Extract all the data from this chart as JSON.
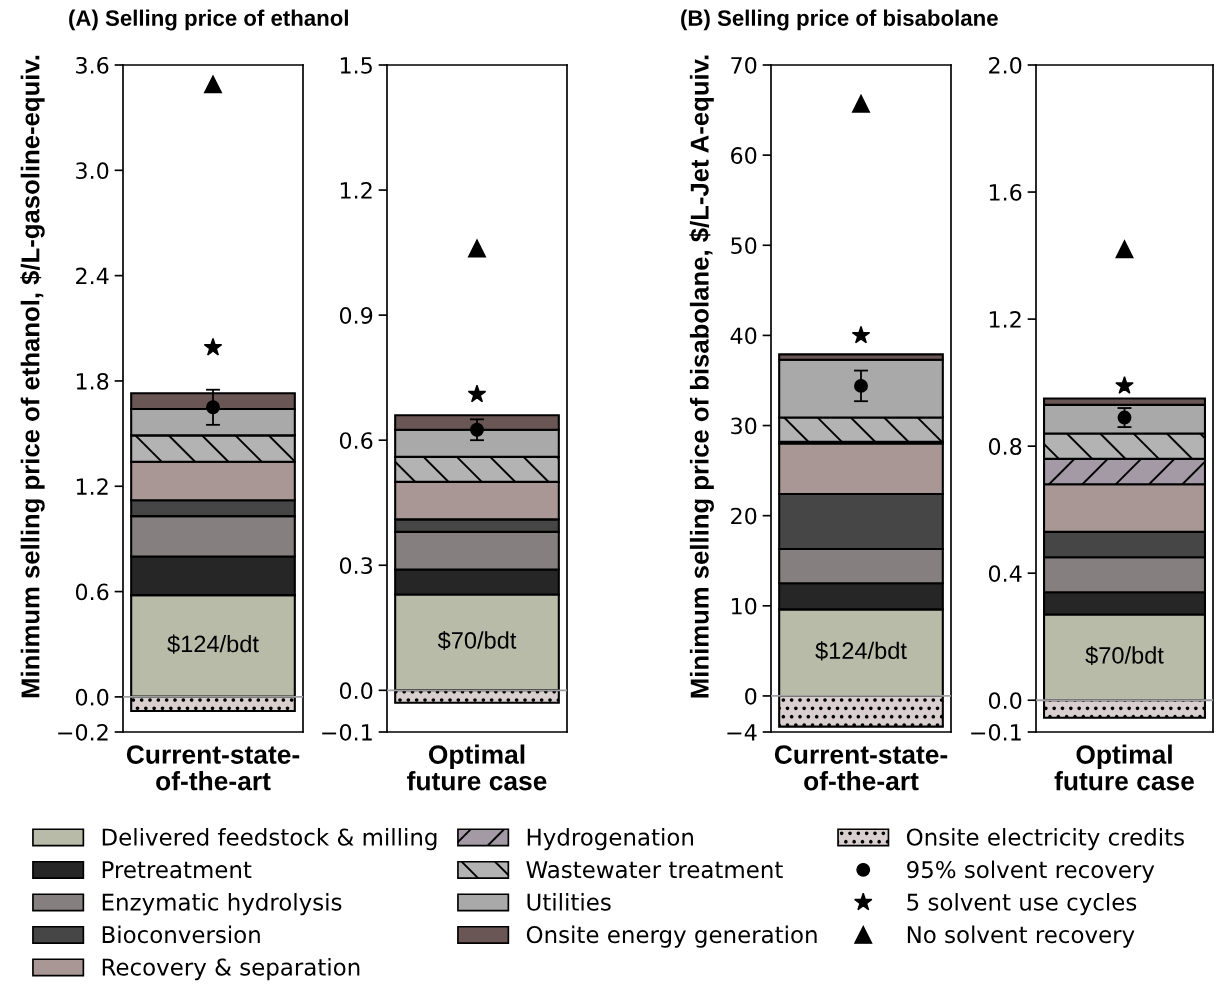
{
  "chart_data": [
    {
      "type": "bar",
      "stacked": true,
      "title": "(A) Selling price of ethanol",
      "ylabel": "Minimum selling price of ethanol, $/L-gasoline-equiv.",
      "legend": "bottom",
      "categories": [
        "Current-state-\nof-the-art"
      ],
      "ylim": [
        -0.2,
        3.6
      ],
      "yticks": [
        {
          "value": -0.2,
          "label": "−0.2"
        },
        {
          "value": 0,
          "label": "0.0"
        },
        0.6,
        1.2,
        1.8,
        2.4,
        {
          "value": 3,
          "label": "3.0"
        },
        3.6
      ],
      "ref_lines": [
        {
          "axis": "y",
          "value": 0,
          "color": "#a0a0a0"
        }
      ],
      "annotations": [
        "$124/bdt"
      ],
      "series": [
        {
          "name": "Delivered feedstock & milling",
          "color": "#b7bba7",
          "values": [
            0.58
          ]
        },
        {
          "name": "Pretreatment",
          "color": "#262626",
          "values": [
            0.22
          ]
        },
        {
          "name": "Enzymatic hydrolysis",
          "color": "#857f7f",
          "values": [
            0.23
          ]
        },
        {
          "name": "Bioconversion",
          "color": "#464646",
          "values": [
            0.09
          ]
        },
        {
          "name": "Recovery & separation",
          "color": "#a99796",
          "values": [
            0.22
          ]
        },
        {
          "name": "Hydrogenation",
          "color": "#a39aa6",
          "values": [
            null
          ]
        },
        {
          "name": "Wastewater treatment",
          "color": "#b3b3b3",
          "values": [
            0.15
          ]
        },
        {
          "name": "Utilities",
          "color": "#a9a9a9",
          "values": [
            0.15
          ]
        },
        {
          "name": "Onsite energy generation",
          "color": "#6b5656",
          "values": [
            0.09
          ]
        },
        {
          "name": "Onsite electricity credits",
          "color": "#d9cfcf",
          "values": [
            -0.08
          ]
        },
        {
          "name": "95% solvent recovery",
          "type": "scatter",
          "marker": "circle",
          "color": "#000000",
          "x": [
            "Current-state-\nof-the-art"
          ],
          "values": [
            1.65
          ],
          "errors": [
            0.1
          ]
        },
        {
          "name": "5 solvent use cycles",
          "type": "scatter",
          "marker": "star",
          "color": "#000000",
          "x": [
            "Current-state-\nof-the-art"
          ],
          "values": [
            1.99
          ]
        },
        {
          "name": "No solvent recovery",
          "type": "scatter",
          "marker": "triangle",
          "color": "#000000",
          "x": [
            "Current-state-\nof-the-art"
          ],
          "values": [
            3.49
          ]
        }
      ]
    },
    {
      "type": "bar",
      "stacked": true,
      "categories": [
        "Optimal\nfuture case"
      ],
      "ylim": [
        -0.1,
        1.5
      ],
      "yticks": [
        {
          "value": -0.1,
          "label": "−0.1"
        },
        {
          "value": 0,
          "label": "0.0"
        },
        0.3,
        0.6,
        0.9,
        1.2,
        1.5
      ],
      "ref_lines": [
        {
          "axis": "y",
          "value": 0,
          "color": "#a0a0a0"
        }
      ],
      "annotations": [
        "$70/bdt"
      ],
      "series": [
        {
          "color": "#b7bba7",
          "values": [
            0.23
          ]
        },
        {
          "color": "#262626",
          "values": [
            0.06
          ]
        },
        {
          "color": "#857f7f",
          "values": [
            0.09
          ]
        },
        {
          "color": "#464646",
          "values": [
            0.03
          ]
        },
        {
          "color": "#a99796",
          "values": [
            0.09
          ]
        },
        {
          "color": "#a39aa6",
          "values": [
            null
          ]
        },
        {
          "color": "#b3b3b3",
          "values": [
            0.06
          ]
        },
        {
          "color": "#a9a9a9",
          "values": [
            0.065
          ]
        },
        {
          "color": "#6b5656",
          "values": [
            0.035
          ]
        },
        {
          "color": "#d9cfcf",
          "values": [
            -0.03
          ]
        },
        {
          "type": "scatter",
          "marker": "circle",
          "color": "#000000",
          "x": [
            "Optimal\nfuture case"
          ],
          "values": [
            0.625
          ],
          "errors": [
            0.025
          ]
        },
        {
          "type": "scatter",
          "marker": "star",
          "color": "#000000",
          "x": [
            "Optimal\nfuture case"
          ],
          "values": [
            0.71
          ]
        },
        {
          "type": "scatter",
          "marker": "triangle",
          "color": "#000000",
          "x": [
            "Optimal\nfuture case"
          ],
          "values": [
            1.06
          ]
        }
      ]
    },
    {
      "type": "bar",
      "stacked": true,
      "title": "(B) Selling price of bisabolane",
      "ylabel": "Minimum selling price of bisabolane, $/L-Jet A-equiv.",
      "categories": [
        "Current-state-\nof-the-art"
      ],
      "ylim": [
        -4,
        70
      ],
      "yticks": [
        {
          "value": -4,
          "label": "−4"
        },
        0,
        10,
        20,
        30,
        40,
        50,
        60,
        70
      ],
      "ref_lines": [
        {
          "axis": "y",
          "value": 0,
          "color": "#a0a0a0"
        }
      ],
      "annotations": [
        "$124/bdt"
      ],
      "series": [
        {
          "color": "#b7bba7",
          "values": [
            9.6
          ]
        },
        {
          "color": "#262626",
          "values": [
            2.9
          ]
        },
        {
          "color": "#857f7f",
          "values": [
            3.8
          ]
        },
        {
          "color": "#464646",
          "values": [
            6.1
          ]
        },
        {
          "color": "#a99796",
          "values": [
            5.6
          ]
        },
        {
          "color": "#a39aa6",
          "values": [
            0.2
          ]
        },
        {
          "color": "#b3b3b3",
          "values": [
            2.7
          ]
        },
        {
          "color": "#a9a9a9",
          "values": [
            6.4
          ]
        },
        {
          "color": "#6b5656",
          "values": [
            0.6
          ]
        },
        {
          "color": "#d9cfcf",
          "values": [
            -3.4
          ]
        },
        {
          "type": "scatter",
          "marker": "circle",
          "color": "#000000",
          "x": [
            "Current-state-\nof-the-art"
          ],
          "values": [
            34.4
          ],
          "errors": [
            1.7
          ]
        },
        {
          "type": "scatter",
          "marker": "star",
          "color": "#000000",
          "x": [
            "Current-state-\nof-the-art"
          ],
          "values": [
            40.0
          ]
        },
        {
          "type": "scatter",
          "marker": "triangle",
          "color": "#000000",
          "x": [
            "Current-state-\nof-the-art"
          ],
          "values": [
            65.7
          ]
        }
      ]
    },
    {
      "type": "bar",
      "stacked": true,
      "categories": [
        "Optimal\nfuture case"
      ],
      "ylim": [
        -0.1,
        2.0
      ],
      "yticks": [
        {
          "value": -0.1,
          "label": "−0.1"
        },
        {
          "value": 0,
          "label": "0.0"
        },
        0.4,
        0.8,
        1.2,
        1.6,
        {
          "value": 2,
          "label": "2.0"
        }
      ],
      "ref_lines": [
        {
          "axis": "y",
          "value": 0,
          "color": "#a0a0a0"
        }
      ],
      "annotations": [
        "$70/bdt"
      ],
      "series": [
        {
          "color": "#b7bba7",
          "values": [
            0.27
          ]
        },
        {
          "color": "#262626",
          "values": [
            0.07
          ]
        },
        {
          "color": "#857f7f",
          "values": [
            0.11
          ]
        },
        {
          "color": "#464646",
          "values": [
            0.08
          ]
        },
        {
          "color": "#a99796",
          "values": [
            0.15
          ]
        },
        {
          "color": "#a39aa6",
          "values": [
            0.08
          ]
        },
        {
          "color": "#b3b3b3",
          "values": [
            0.08
          ]
        },
        {
          "color": "#a9a9a9",
          "values": [
            0.09
          ]
        },
        {
          "color": "#6b5656",
          "values": [
            0.02
          ]
        },
        {
          "color": "#d9cfcf",
          "values": [
            -0.055
          ]
        },
        {
          "type": "scatter",
          "marker": "circle",
          "color": "#000000",
          "x": [
            "Optimal\nfuture case"
          ],
          "values": [
            0.89
          ],
          "errors": [
            0.03
          ]
        },
        {
          "type": "scatter",
          "marker": "star",
          "color": "#000000",
          "x": [
            "Optimal\nfuture case"
          ],
          "values": [
            0.99
          ]
        },
        {
          "type": "scatter",
          "marker": "triangle",
          "color": "#000000",
          "x": [
            "Optimal\nfuture case"
          ],
          "values": [
            1.42
          ]
        }
      ]
    }
  ]
}
